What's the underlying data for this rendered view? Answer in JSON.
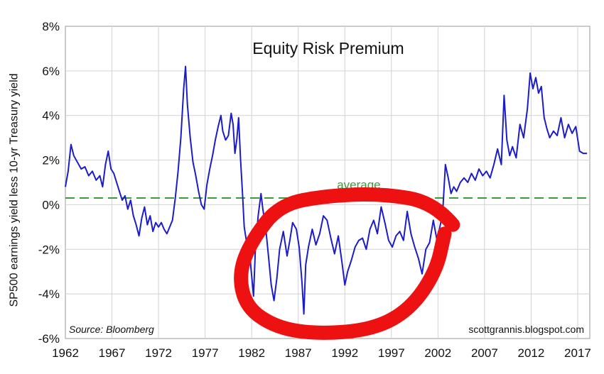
{
  "chart_data": {
    "type": "line",
    "title": "Equity Risk Premium",
    "ylabel": "SP500 earnings yield less 10-yr Treasury yield",
    "xlabel": "",
    "xlim": [
      1962,
      2018.3
    ],
    "ylim": [
      -6,
      8
    ],
    "grid": true,
    "x_ticks": [
      1962,
      1967,
      1972,
      1977,
      1982,
      1987,
      1992,
      1997,
      2002,
      2007,
      2012,
      2017
    ],
    "x_tick_labels": [
      "1962",
      "1967",
      "1972",
      "1977",
      "1982",
      "1987",
      "1992",
      "1997",
      "2002",
      "2007",
      "2012",
      "2017"
    ],
    "y_ticks": [
      -6,
      -4,
      -2,
      0,
      2,
      4,
      6,
      8
    ],
    "y_tick_labels": [
      "-6%",
      "-4%",
      "-2%",
      "0%",
      "2%",
      "4%",
      "6%",
      "8%"
    ],
    "average": {
      "value": 0.3,
      "label": "average"
    },
    "source": "Source: Bloomberg",
    "credit": "scottgrannis.blogspot.com",
    "annotation": "red freehand ellipse around the 1983–2003 negative period",
    "colors": {
      "series": "#1c1cc8",
      "average_line": "#3c9a3c",
      "annotation": "#ee1111",
      "grid": "#d2d2d2"
    },
    "series": [
      {
        "values": [
          [
            1962.0,
            0.8
          ],
          [
            1962.3,
            1.5
          ],
          [
            1962.6,
            2.7
          ],
          [
            1962.9,
            2.2
          ],
          [
            1963.3,
            1.9
          ],
          [
            1963.7,
            1.6
          ],
          [
            1964.1,
            1.7
          ],
          [
            1964.5,
            1.3
          ],
          [
            1964.9,
            1.5
          ],
          [
            1965.3,
            1.1
          ],
          [
            1965.7,
            1.3
          ],
          [
            1966.0,
            0.8
          ],
          [
            1966.3,
            1.8
          ],
          [
            1966.6,
            2.4
          ],
          [
            1966.9,
            1.6
          ],
          [
            1967.2,
            1.4
          ],
          [
            1967.5,
            1.0
          ],
          [
            1967.8,
            0.6
          ],
          [
            1968.1,
            0.2
          ],
          [
            1968.4,
            0.4
          ],
          [
            1968.7,
            -0.2
          ],
          [
            1969.0,
            0.2
          ],
          [
            1969.3,
            -0.5
          ],
          [
            1969.6,
            -0.9
          ],
          [
            1969.9,
            -1.4
          ],
          [
            1970.2,
            -0.6
          ],
          [
            1970.5,
            -0.1
          ],
          [
            1970.8,
            -0.9
          ],
          [
            1971.1,
            -0.5
          ],
          [
            1971.4,
            -1.2
          ],
          [
            1971.7,
            -0.8
          ],
          [
            1972.0,
            -1.0
          ],
          [
            1972.3,
            -0.8
          ],
          [
            1972.6,
            -1.1
          ],
          [
            1972.9,
            -1.3
          ],
          [
            1973.2,
            -1.0
          ],
          [
            1973.5,
            -0.7
          ],
          [
            1973.8,
            0.3
          ],
          [
            1974.1,
            1.5
          ],
          [
            1974.4,
            3.0
          ],
          [
            1974.7,
            5.2
          ],
          [
            1974.9,
            6.2
          ],
          [
            1975.1,
            4.5
          ],
          [
            1975.4,
            3.0
          ],
          [
            1975.7,
            1.9
          ],
          [
            1976.0,
            1.3
          ],
          [
            1976.3,
            0.6
          ],
          [
            1976.6,
            0.0
          ],
          [
            1976.9,
            -0.2
          ],
          [
            1977.2,
            0.9
          ],
          [
            1977.5,
            1.6
          ],
          [
            1977.8,
            2.2
          ],
          [
            1978.1,
            2.9
          ],
          [
            1978.4,
            3.5
          ],
          [
            1978.7,
            4.0
          ],
          [
            1978.9,
            3.3
          ],
          [
            1979.2,
            2.9
          ],
          [
            1979.5,
            3.1
          ],
          [
            1979.8,
            4.1
          ],
          [
            1980.0,
            3.6
          ],
          [
            1980.2,
            2.3
          ],
          [
            1980.4,
            2.9
          ],
          [
            1980.6,
            3.9
          ],
          [
            1980.8,
            2.1
          ],
          [
            1981.0,
            0.6
          ],
          [
            1981.2,
            -1.0
          ],
          [
            1981.5,
            -1.8
          ],
          [
            1981.8,
            -2.3
          ],
          [
            1982.0,
            -3.2
          ],
          [
            1982.2,
            -4.1
          ],
          [
            1982.4,
            -2.0
          ],
          [
            1982.7,
            -0.5
          ],
          [
            1983.0,
            0.5
          ],
          [
            1983.2,
            -0.2
          ],
          [
            1983.5,
            -1.0
          ],
          [
            1983.8,
            -2.3
          ],
          [
            1984.1,
            -3.6
          ],
          [
            1984.4,
            -4.3
          ],
          [
            1984.7,
            -3.3
          ],
          [
            1985.0,
            -2.0
          ],
          [
            1985.4,
            -1.2
          ],
          [
            1985.8,
            -2.3
          ],
          [
            1986.1,
            -1.6
          ],
          [
            1986.4,
            -0.8
          ],
          [
            1986.8,
            -1.1
          ],
          [
            1987.1,
            -1.9
          ],
          [
            1987.4,
            -3.5
          ],
          [
            1987.6,
            -4.9
          ],
          [
            1987.8,
            -2.7
          ],
          [
            1988.1,
            -1.9
          ],
          [
            1988.5,
            -1.1
          ],
          [
            1988.9,
            -1.8
          ],
          [
            1989.3,
            -1.3
          ],
          [
            1989.7,
            -0.5
          ],
          [
            1990.1,
            -0.7
          ],
          [
            1990.5,
            -1.5
          ],
          [
            1990.9,
            -2.2
          ],
          [
            1991.3,
            -1.4
          ],
          [
            1991.7,
            -2.6
          ],
          [
            1992.0,
            -3.6
          ],
          [
            1992.3,
            -3.0
          ],
          [
            1992.7,
            -2.5
          ],
          [
            1993.1,
            -1.9
          ],
          [
            1993.5,
            -1.6
          ],
          [
            1993.9,
            -1.5
          ],
          [
            1994.3,
            -2.0
          ],
          [
            1994.7,
            -1.1
          ],
          [
            1995.1,
            -0.7
          ],
          [
            1995.5,
            -1.3
          ],
          [
            1995.9,
            -0.1
          ],
          [
            1996.3,
            -0.8
          ],
          [
            1996.7,
            -1.6
          ],
          [
            1997.1,
            -1.9
          ],
          [
            1997.5,
            -1.4
          ],
          [
            1997.9,
            -1.2
          ],
          [
            1998.3,
            -1.6
          ],
          [
            1998.7,
            -0.3
          ],
          [
            1999.1,
            -1.3
          ],
          [
            1999.5,
            -1.9
          ],
          [
            1999.9,
            -2.4
          ],
          [
            2000.3,
            -3.1
          ],
          [
            2000.7,
            -2.0
          ],
          [
            2001.1,
            -1.7
          ],
          [
            2001.5,
            -0.7
          ],
          [
            2001.9,
            -1.6
          ],
          [
            2002.2,
            -1.0
          ],
          [
            2002.5,
            -0.4
          ],
          [
            2002.8,
            1.8
          ],
          [
            2003.1,
            1.2
          ],
          [
            2003.4,
            0.5
          ],
          [
            2003.7,
            0.8
          ],
          [
            2004.0,
            0.6
          ],
          [
            2004.4,
            1.0
          ],
          [
            2004.8,
            1.2
          ],
          [
            2005.2,
            1.0
          ],
          [
            2005.6,
            1.4
          ],
          [
            2006.0,
            1.1
          ],
          [
            2006.4,
            1.6
          ],
          [
            2006.8,
            1.3
          ],
          [
            2007.2,
            1.5
          ],
          [
            2007.6,
            1.2
          ],
          [
            2008.0,
            1.8
          ],
          [
            2008.4,
            2.5
          ],
          [
            2008.8,
            1.8
          ],
          [
            2009.1,
            4.9
          ],
          [
            2009.4,
            2.9
          ],
          [
            2009.7,
            2.2
          ],
          [
            2010.0,
            2.6
          ],
          [
            2010.4,
            2.1
          ],
          [
            2010.8,
            3.6
          ],
          [
            2011.2,
            3.0
          ],
          [
            2011.6,
            4.3
          ],
          [
            2011.9,
            5.9
          ],
          [
            2012.2,
            5.2
          ],
          [
            2012.5,
            5.7
          ],
          [
            2012.8,
            5.0
          ],
          [
            2013.1,
            5.3
          ],
          [
            2013.4,
            3.9
          ],
          [
            2013.7,
            3.4
          ],
          [
            2014.0,
            3.0
          ],
          [
            2014.4,
            3.3
          ],
          [
            2014.8,
            3.1
          ],
          [
            2015.2,
            3.9
          ],
          [
            2015.6,
            3.0
          ],
          [
            2016.0,
            3.6
          ],
          [
            2016.4,
            3.2
          ],
          [
            2016.8,
            3.5
          ],
          [
            2017.2,
            2.4
          ],
          [
            2017.6,
            2.3
          ],
          [
            2018.0,
            2.3
          ]
        ]
      }
    ]
  }
}
